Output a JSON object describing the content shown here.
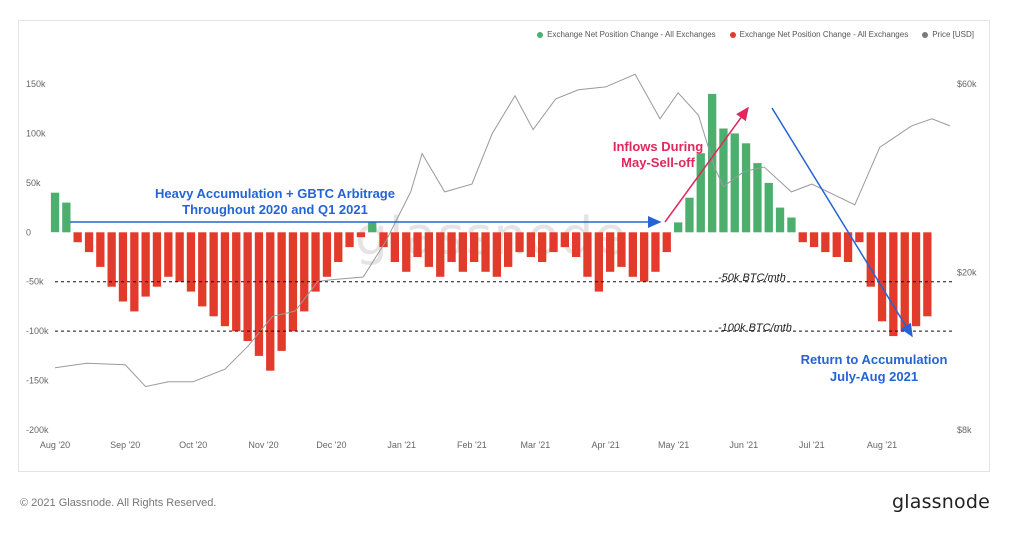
{
  "legend": [
    {
      "label": "Exchange Net Position Change - All Exchanges",
      "color": "#4caf6e"
    },
    {
      "label": "Exchange Net Position Change - All Exchanges",
      "color": "#e23b2b"
    },
    {
      "label": "Price [USD]",
      "color": "#7a7a7a"
    }
  ],
  "watermark": "glassnode",
  "footer": {
    "copyright": "© 2021 Glassnode. All Rights Reserved.",
    "brand": "glassnode"
  },
  "colors": {
    "positive": "#4caf6e",
    "negative": "#e23b2b",
    "price": "#9a9a9a",
    "blue": "#2563d6",
    "pink": "#e0275e"
  },
  "annotations": {
    "accumulation_line1": "Heavy Accumulation + GBTC Arbitrage",
    "accumulation_line2": "Throughout 2020 and Q1 2021",
    "inflows_line1": "Inflows During",
    "inflows_line2": "May-Sell-off",
    "return_line1": "Return to Accumulation",
    "return_line2": "July-Aug 2021",
    "ref_50k": "-50k BTC/mth",
    "ref_100k": "-100k BTC/mth"
  },
  "chart_data": {
    "type": "bar",
    "x_axis": {
      "type": "date",
      "start": "2020-08-01",
      "end": "2021-08-31",
      "tick_labels": [
        "Aug '20",
        "Sep '20",
        "Oct '20",
        "Nov '20",
        "Dec '20",
        "Jan '21",
        "Feb '21",
        "Mar '21",
        "Apr '21",
        "May '21",
        "Jun '21",
        "Jul '21",
        "Aug '21"
      ]
    },
    "y_left": {
      "ticks": [
        "150k",
        "100k",
        "50k",
        "0",
        "-50k",
        "-100k",
        "-150k",
        "-200k"
      ],
      "range": [
        -200000,
        150000
      ]
    },
    "y_right": {
      "scale": "log",
      "ticks": [
        "$60k",
        "$20k",
        "$8k"
      ],
      "range": [
        8000,
        60000
      ]
    },
    "reference_lines": [
      -50000,
      -100000
    ],
    "grid": false,
    "legend_position": "top-right",
    "series": [
      {
        "name": "Exchange Net Position Change - All Exchanges",
        "kind": "bars",
        "points": [
          [
            "2020-08-01",
            40000
          ],
          [
            "2020-08-06",
            30000
          ],
          [
            "2020-08-11",
            -10000
          ],
          [
            "2020-08-16",
            -20000
          ],
          [
            "2020-08-21",
            -35000
          ],
          [
            "2020-08-26",
            -55000
          ],
          [
            "2020-08-31",
            -70000
          ],
          [
            "2020-09-05",
            -80000
          ],
          [
            "2020-09-10",
            -65000
          ],
          [
            "2020-09-15",
            -55000
          ],
          [
            "2020-09-20",
            -45000
          ],
          [
            "2020-09-25",
            -50000
          ],
          [
            "2020-09-30",
            -60000
          ],
          [
            "2020-10-05",
            -75000
          ],
          [
            "2020-10-10",
            -85000
          ],
          [
            "2020-10-15",
            -95000
          ],
          [
            "2020-10-20",
            -100000
          ],
          [
            "2020-10-25",
            -110000
          ],
          [
            "2020-10-30",
            -125000
          ],
          [
            "2020-11-04",
            -140000
          ],
          [
            "2020-11-09",
            -120000
          ],
          [
            "2020-11-14",
            -100000
          ],
          [
            "2020-11-19",
            -80000
          ],
          [
            "2020-11-24",
            -60000
          ],
          [
            "2020-11-29",
            -45000
          ],
          [
            "2020-12-04",
            -30000
          ],
          [
            "2020-12-09",
            -15000
          ],
          [
            "2020-12-14",
            -5000
          ],
          [
            "2020-12-19",
            10000
          ],
          [
            "2020-12-24",
            -15000
          ],
          [
            "2020-12-29",
            -30000
          ],
          [
            "2021-01-03",
            -40000
          ],
          [
            "2021-01-08",
            -25000
          ],
          [
            "2021-01-13",
            -35000
          ],
          [
            "2021-01-18",
            -45000
          ],
          [
            "2021-01-23",
            -30000
          ],
          [
            "2021-01-28",
            -40000
          ],
          [
            "2021-02-02",
            -30000
          ],
          [
            "2021-02-07",
            -40000
          ],
          [
            "2021-02-12",
            -45000
          ],
          [
            "2021-02-17",
            -35000
          ],
          [
            "2021-02-22",
            -20000
          ],
          [
            "2021-02-27",
            -25000
          ],
          [
            "2021-03-04",
            -30000
          ],
          [
            "2021-03-09",
            -20000
          ],
          [
            "2021-03-14",
            -15000
          ],
          [
            "2021-03-19",
            -25000
          ],
          [
            "2021-03-24",
            -45000
          ],
          [
            "2021-03-29",
            -60000
          ],
          [
            "2021-04-03",
            -40000
          ],
          [
            "2021-04-08",
            -35000
          ],
          [
            "2021-04-13",
            -45000
          ],
          [
            "2021-04-18",
            -50000
          ],
          [
            "2021-04-23",
            -40000
          ],
          [
            "2021-04-28",
            -20000
          ],
          [
            "2021-05-03",
            10000
          ],
          [
            "2021-05-08",
            35000
          ],
          [
            "2021-05-13",
            80000
          ],
          [
            "2021-05-18",
            140000
          ],
          [
            "2021-05-23",
            105000
          ],
          [
            "2021-05-28",
            100000
          ],
          [
            "2021-06-02",
            90000
          ],
          [
            "2021-06-07",
            70000
          ],
          [
            "2021-06-12",
            50000
          ],
          [
            "2021-06-17",
            25000
          ],
          [
            "2021-06-22",
            15000
          ],
          [
            "2021-06-27",
            -10000
          ],
          [
            "2021-07-02",
            -15000
          ],
          [
            "2021-07-07",
            -20000
          ],
          [
            "2021-07-12",
            -25000
          ],
          [
            "2021-07-17",
            -30000
          ],
          [
            "2021-07-22",
            -10000
          ],
          [
            "2021-07-27",
            -55000
          ],
          [
            "2021-08-01",
            -90000
          ],
          [
            "2021-08-06",
            -105000
          ],
          [
            "2021-08-11",
            -100000
          ],
          [
            "2021-08-16",
            -95000
          ],
          [
            "2021-08-21",
            -85000
          ]
        ]
      },
      {
        "name": "Price [USD]",
        "kind": "line",
        "points": [
          [
            "2020-08-01",
            11500
          ],
          [
            "2020-08-15",
            11800
          ],
          [
            "2020-09-01",
            11700
          ],
          [
            "2020-09-10",
            10300
          ],
          [
            "2020-09-20",
            10600
          ],
          [
            "2020-10-01",
            10600
          ],
          [
            "2020-10-15",
            11400
          ],
          [
            "2020-10-25",
            13000
          ],
          [
            "2020-11-05",
            15500
          ],
          [
            "2020-11-15",
            16000
          ],
          [
            "2020-11-25",
            19000
          ],
          [
            "2020-12-01",
            19200
          ],
          [
            "2020-12-15",
            19500
          ],
          [
            "2020-12-25",
            24000
          ],
          [
            "2021-01-05",
            32000
          ],
          [
            "2021-01-10",
            40000
          ],
          [
            "2021-01-20",
            32000
          ],
          [
            "2021-02-01",
            33500
          ],
          [
            "2021-02-10",
            45000
          ],
          [
            "2021-02-20",
            56000
          ],
          [
            "2021-02-28",
            46000
          ],
          [
            "2021-03-10",
            55000
          ],
          [
            "2021-03-20",
            58000
          ],
          [
            "2021-04-01",
            59000
          ],
          [
            "2021-04-14",
            63500
          ],
          [
            "2021-04-25",
            49000
          ],
          [
            "2021-05-03",
            57000
          ],
          [
            "2021-05-12",
            50000
          ],
          [
            "2021-05-19",
            37000
          ],
          [
            "2021-05-23",
            33000
          ],
          [
            "2021-06-01",
            36000
          ],
          [
            "2021-06-10",
            37000
          ],
          [
            "2021-06-22",
            32000
          ],
          [
            "2021-07-01",
            33500
          ],
          [
            "2021-07-20",
            29700
          ],
          [
            "2021-07-31",
            41500
          ],
          [
            "2021-08-14",
            47000
          ],
          [
            "2021-08-23",
            49000
          ],
          [
            "2021-08-31",
            47000
          ]
        ]
      }
    ]
  }
}
